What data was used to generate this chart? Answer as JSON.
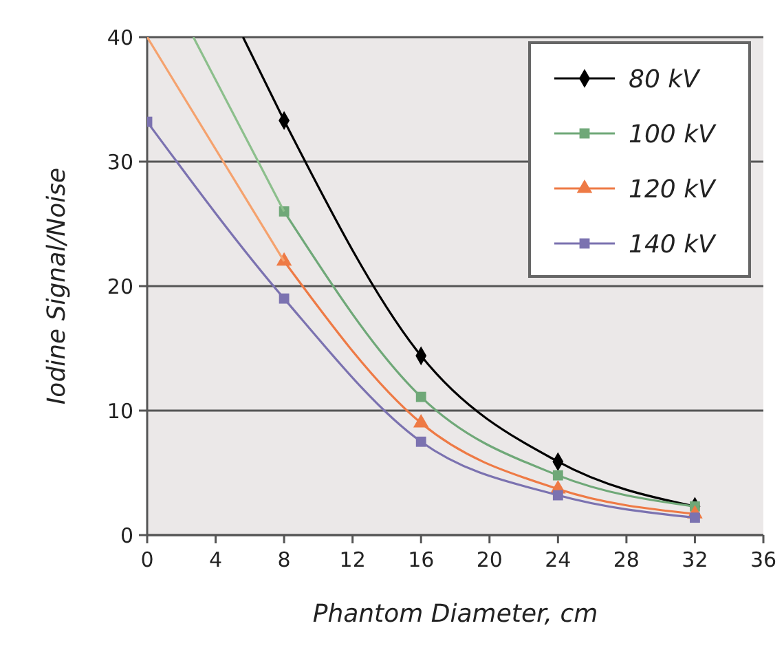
{
  "chart_data": {
    "type": "line",
    "xlabel": "Phantom Diameter, cm",
    "ylabel": "Iodine Signal/Noise",
    "xlim": [
      0,
      36
    ],
    "xticks": [
      0,
      4,
      8,
      12,
      16,
      20,
      24,
      28,
      32,
      36
    ],
    "ylim": [
      0,
      40
    ],
    "yticks": [
      0,
      10,
      20,
      30,
      40
    ],
    "grid": "y",
    "legend": "top right",
    "series": [
      {
        "name": "80 kV",
        "color": "#000000",
        "marker": "diamond",
        "x": [
          8,
          16,
          24,
          32
        ],
        "values": [
          33.3,
          14.4,
          5.9,
          2.3
        ]
      },
      {
        "name": "100 kV",
        "color": "#6fa878",
        "marker": "square",
        "x": [
          8,
          16,
          24,
          32
        ],
        "values": [
          26,
          11.1,
          4.8,
          2.3
        ]
      },
      {
        "name": "120 kV",
        "color": "#ee7a45",
        "marker": "triangle",
        "x": [
          8,
          16,
          24,
          32
        ],
        "values": [
          22,
          9,
          3.7,
          1.7
        ]
      },
      {
        "name": "140 kV",
        "color": "#7b72b0",
        "marker": "square",
        "x": [
          0,
          8,
          16,
          24,
          32
        ],
        "values": [
          33.2,
          19,
          7.5,
          3.2,
          1.4
        ]
      },
      {
        "type": "line",
        "color": "#000000",
        "marker": "none",
        "x": [
          5.6,
          8
        ],
        "values": [
          40,
          33.3
        ]
      },
      {
        "type": "line",
        "color": "#8cbf8c",
        "marker": "none",
        "x": [
          2.7,
          8
        ],
        "values": [
          40,
          26
        ]
      },
      {
        "type": "line",
        "color": "#f5a26e",
        "marker": "none",
        "x": [
          0,
          8
        ],
        "values": [
          40,
          22
        ]
      }
    ]
  }
}
